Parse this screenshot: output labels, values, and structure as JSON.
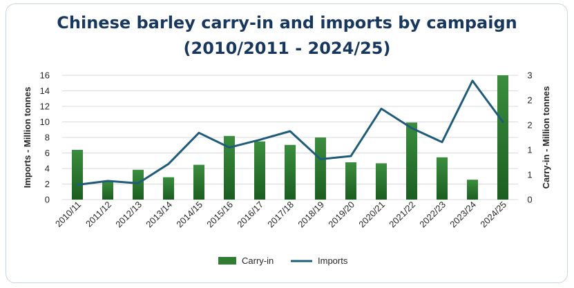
{
  "chart_data": {
    "type": "bar",
    "title_line1": "Chinese barley carry-in and imports by campaign",
    "title_line2": "(2010/2011  - 2024/25)",
    "categories": [
      "2010/11",
      "2011/12",
      "2012/13",
      "2013/14",
      "2014/15",
      "2015/16",
      "2016/17",
      "2017/18",
      "2018/19",
      "2019/20",
      "2020/21",
      "2021/22",
      "2022/23",
      "2023/24",
      "2024/25"
    ],
    "series": [
      {
        "name": "Carry-in",
        "chart": "bar",
        "axis": "right",
        "color": "#2e7d32",
        "values": [
          1.0,
          0.37,
          0.6,
          0.45,
          0.7,
          1.28,
          1.17,
          1.1,
          1.25,
          0.75,
          0.73,
          1.55,
          0.85,
          0.4,
          2.5
        ]
      },
      {
        "name": "Imports",
        "chart": "line",
        "axis": "left",
        "color": "#1f5c7a",
        "values": [
          1.9,
          2.4,
          2.1,
          4.6,
          8.6,
          6.7,
          7.7,
          8.8,
          5.2,
          5.6,
          11.7,
          9.2,
          7.4,
          15.3,
          10.0
        ]
      }
    ],
    "y_left": {
      "label": "Imports - Million tonnes",
      "ylim": [
        0,
        16
      ],
      "ticks": [
        "0",
        "2",
        "4",
        "6",
        "8",
        "10",
        "12",
        "14",
        "16"
      ]
    },
    "y_right": {
      "label": "Carry-in - Million tonnes",
      "ylim": [
        0,
        2.5
      ],
      "ticks": [
        {
          "value": 0,
          "text": "0"
        },
        {
          "value": 0.5,
          "text": "1"
        },
        {
          "value": 1.0,
          "text": "1"
        },
        {
          "value": 1.5,
          "text": "2"
        },
        {
          "value": 2.0,
          "text": "2"
        },
        {
          "value": 2.5,
          "text": "3"
        }
      ]
    },
    "grid": true,
    "legend_position": "bottom",
    "gridline_color": "#d9d9d9"
  }
}
